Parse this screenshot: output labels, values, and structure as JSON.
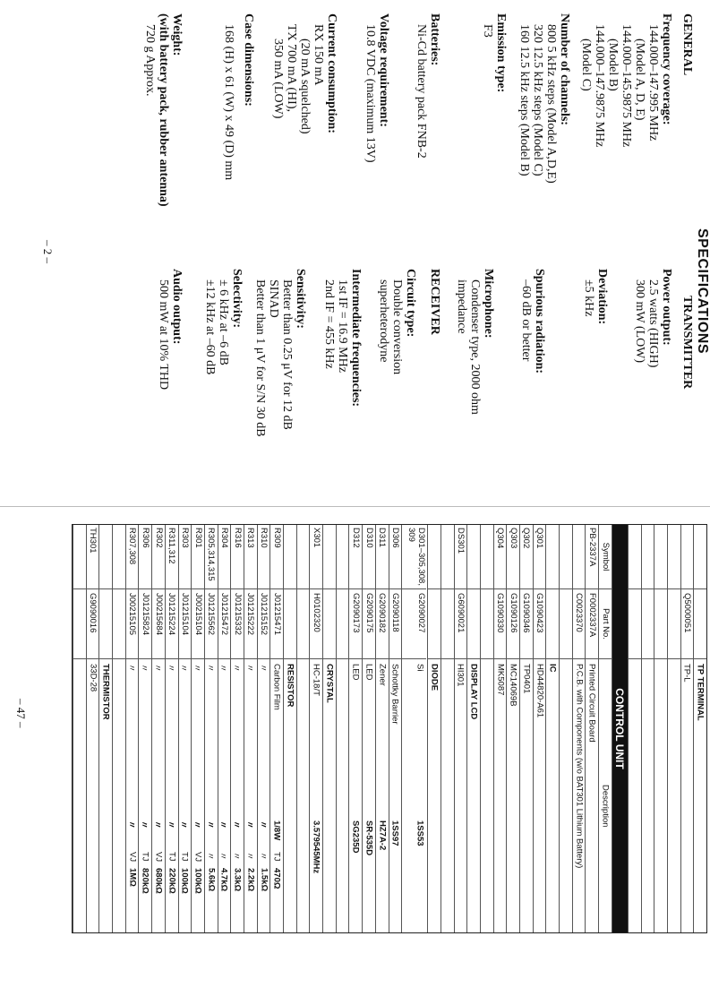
{
  "spec_page": {
    "title": "SPECIFICATIONS",
    "page_number": "– 2 –",
    "left": [
      {
        "t": "GENERAL",
        "b": true
      },
      {
        "t": "Frequency coverage:",
        "b": true
      },
      {
        "t": "144.000–147.995 MHz",
        "i": 1
      },
      {
        "t": "(Model A, D, E)",
        "i": 2
      },
      {
        "t": "144.000–145.9875 MHz",
        "i": 1
      },
      {
        "t": "(Model B)",
        "i": 2
      },
      {
        "t": "144.000–147.9875 MHz",
        "i": 1
      },
      {
        "t": "(Model C)",
        "i": 2
      },
      {
        "t": "Number of channels:",
        "b": true
      },
      {
        "t": "800  5 kHz steps (Model A,D,E)",
        "i": 1
      },
      {
        "t": "320  12.5 kHz steps (Model C)",
        "i": 1
      },
      {
        "t": "160  12.5 kHz steps (Model B)",
        "i": 1
      },
      {
        "t": "Emission type:",
        "b": true
      },
      {
        "t": "F3",
        "i": 1
      },
      {
        "t": "Batteries:",
        "b": true
      },
      {
        "t": "Ni-Cd battery pack FNB-2",
        "i": 1
      },
      {
        "t": "Voltage requirement:",
        "b": true
      },
      {
        "t": "10.8 VDC (maximum 13V)",
        "i": 1
      },
      {
        "t": "Current consumption:",
        "b": true
      },
      {
        "t": "RX  150 mA",
        "i": 1
      },
      {
        "t": "(20 mA squelched)",
        "i": 2
      },
      {
        "t": "TX  700 mA (HI),",
        "i": 1
      },
      {
        "t": "350 mA (LOW)",
        "i": 2
      },
      {
        "t": "Case dimensions:",
        "b": true
      },
      {
        "t": "168 (H) x 61 (W) x 49 (D) mm",
        "i": 1
      },
      {
        "t": "Weight:",
        "b": true
      },
      {
        "t": "(with battery pack, rubber antenna)",
        "b": true
      },
      {
        "t": "720 g Approx.",
        "i": 1
      }
    ],
    "right": [
      {
        "t": "TRANSMITTER",
        "b": true
      },
      {
        "t": "Power output:",
        "b": true
      },
      {
        "t": "2.5 watts (HIGH)",
        "i": 1
      },
      {
        "t": "300 mW (LOW)",
        "i": 1
      },
      {
        "t": "Deviation:",
        "b": true
      },
      {
        "t": "±5 kHz",
        "i": 1
      },
      {
        "t": "Spurious radiation:",
        "b": true
      },
      {
        "t": "–60 dB or better",
        "i": 1
      },
      {
        "t": "Microphone:",
        "b": true
      },
      {
        "t": "Condenser type, 2000 ohm",
        "i": 1
      },
      {
        "t": "impedance",
        "i": 1
      },
      {
        "t": "RECEIVER",
        "b": true
      },
      {
        "t": "Circuit type:",
        "b": true
      },
      {
        "t": "Double conversion",
        "i": 1
      },
      {
        "t": "superheterodyne",
        "i": 1
      },
      {
        "t": "Intermediate frequencies:",
        "b": true
      },
      {
        "t": "1st IF  = 16.9 MHz",
        "i": 1
      },
      {
        "t": "2nd IF = 455 kHz",
        "i": 1
      },
      {
        "t": "Sensitivity:",
        "b": true
      },
      {
        "t": "Better than 0.25 μV for 12 dB",
        "i": 1
      },
      {
        "t": "SINAD",
        "i": 1
      },
      {
        "t": "Better than 1 μV for S/N 30 dB",
        "i": 1
      },
      {
        "t": "Selectivity:",
        "b": true
      },
      {
        "t": "± 6 kHz at –6 dB",
        "i": 1
      },
      {
        "t": "±12 kHz at –60 dB",
        "i": 1
      },
      {
        "t": "Audio output:",
        "b": true
      },
      {
        "t": "500 mW at 10% THD",
        "i": 1
      }
    ]
  },
  "parts_page": {
    "page_number": "– 47 –",
    "rows": [
      {
        "k": "sec",
        "d": "TP TERMINAL"
      },
      {
        "k": "item",
        "s": "",
        "p": "Q5000051",
        "d": "TP-L"
      },
      {
        "k": "blank"
      },
      {
        "k": "blank"
      },
      {
        "k": "blank"
      },
      {
        "k": "blank"
      },
      {
        "k": "ctrl",
        "d": "CONTROL UNIT"
      },
      {
        "k": "hdr",
        "s": "Symbol",
        "p": "Part No.",
        "d": "Description"
      },
      {
        "k": "item",
        "s": "PB-2337A",
        "p": "F0002337A",
        "d": "Printed Circuit Board"
      },
      {
        "k": "item",
        "s": "",
        "p": "C0023370",
        "d": "P.C.B. with Components (w/o BAT301 Lithium Battery)"
      },
      {
        "k": "blank"
      },
      {
        "k": "sec",
        "d": "IC"
      },
      {
        "k": "item",
        "s": "Q301",
        "p": "G1090423",
        "d": "HD44820-A61"
      },
      {
        "k": "item",
        "s": "Q302",
        "p": "G1090346",
        "d": "TP0401"
      },
      {
        "k": "item",
        "s": "Q303",
        "p": "G1090126",
        "d": "MC14069B"
      },
      {
        "k": "item",
        "s": "Q304",
        "p": "G1090330",
        "d": "MK5087"
      },
      {
        "k": "blank"
      },
      {
        "k": "sec",
        "d": "DISPLAY LCD"
      },
      {
        "k": "item",
        "s": "DS301",
        "p": "G6090021",
        "d": "HI301"
      },
      {
        "k": "blank"
      },
      {
        "k": "sec",
        "d": "DIODE"
      },
      {
        "k": "dbl",
        "s": "D301–305,308, 309",
        "p": "G2090027",
        "d": "Si",
        "w": "1SS53"
      },
      {
        "k": "item",
        "s": "D306",
        "p": "G2090118",
        "d": "Schottky Barrier",
        "w": "1SS97"
      },
      {
        "k": "item",
        "s": "D311",
        "p": "G2090182",
        "d": "Zener",
        "w": "HZ7A-2"
      },
      {
        "k": "item",
        "s": "D310",
        "p": "G2090175",
        "d": "LED",
        "w": "SR-535D"
      },
      {
        "k": "item",
        "s": "D312",
        "p": "G2090173",
        "d": "LED",
        "w": "SG235D"
      },
      {
        "k": "blank"
      },
      {
        "k": "sec",
        "d": "CRYSTAL"
      },
      {
        "k": "item",
        "s": "X301",
        "p": "H0102320",
        "d": "HC-18/T",
        "w": "3.579545MHz"
      },
      {
        "k": "blank"
      },
      {
        "k": "sec",
        "d": "RESISTOR"
      },
      {
        "k": "item",
        "s": "R309",
        "p": "J01215471",
        "d": "Carbon Film",
        "w": "1/8W",
        "m": "TJ",
        "v": "470Ω"
      },
      {
        "k": "item",
        "s": "R310",
        "p": "J01215152",
        "d": "〃",
        "w": "〃",
        "m": "〃",
        "v": "1.5kΩ"
      },
      {
        "k": "item",
        "s": "R313",
        "p": "J01215222",
        "d": "〃",
        "w": "〃",
        "m": "〃",
        "v": "2.2kΩ"
      },
      {
        "k": "item",
        "s": "R316",
        "p": "J01215332",
        "d": "〃",
        "w": "〃",
        "m": "〃",
        "v": "3.3kΩ"
      },
      {
        "k": "item",
        "s": "R304",
        "p": "J01215472",
        "d": "〃",
        "w": "〃",
        "m": "〃",
        "v": "4.7kΩ"
      },
      {
        "k": "item",
        "s": "R305,314,315",
        "p": "J01215562",
        "d": "〃",
        "w": "〃",
        "m": "〃",
        "v": "5.6kΩ"
      },
      {
        "k": "item",
        "s": "R301",
        "p": "J00215104",
        "d": "〃",
        "w": "〃",
        "m": "VJ",
        "v": "100kΩ"
      },
      {
        "k": "item",
        "s": "R303",
        "p": "J01215104",
        "d": "〃",
        "w": "〃",
        "m": "TJ",
        "v": "100kΩ"
      },
      {
        "k": "item",
        "s": "R311,312",
        "p": "J01215224",
        "d": "〃",
        "w": "〃",
        "m": "TJ",
        "v": "220kΩ"
      },
      {
        "k": "item",
        "s": "R302",
        "p": "J00215684",
        "d": "〃",
        "w": "〃",
        "m": "VJ",
        "v": "680kΩ"
      },
      {
        "k": "item",
        "s": "R306",
        "p": "J01215824",
        "d": "〃",
        "w": "〃",
        "m": "TJ",
        "v": "820kΩ"
      },
      {
        "k": "item",
        "s": "R307,308",
        "p": "J00215105",
        "d": "〃",
        "w": "〃",
        "m": "VJ",
        "v": "1MΩ"
      },
      {
        "k": "blank"
      },
      {
        "k": "sec",
        "d": "THERMISTOR"
      },
      {
        "k": "item",
        "s": "TH301",
        "p": "G9090016",
        "d": "33D-28"
      },
      {
        "k": "blank"
      }
    ]
  }
}
